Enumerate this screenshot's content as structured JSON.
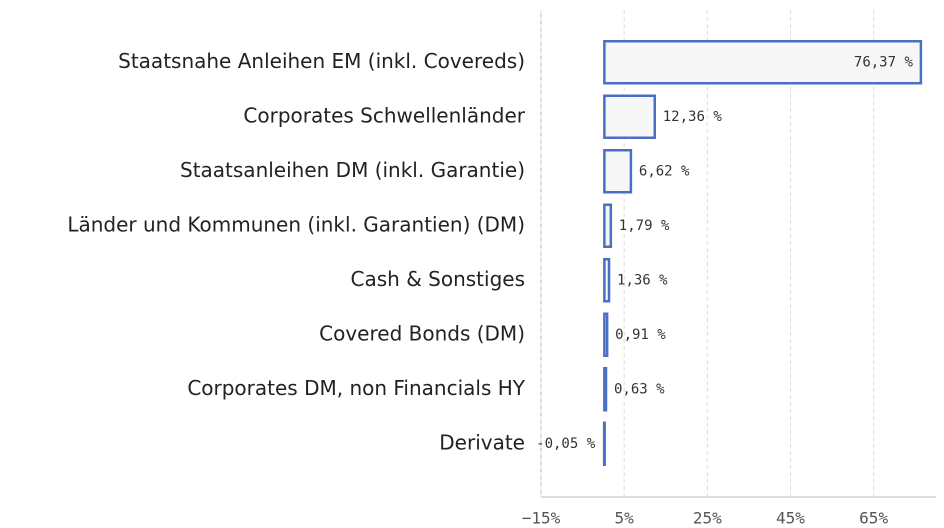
{
  "chart_data": {
    "type": "barh",
    "categories": [
      "Staatsnahe Anleihen EM (inkl. Covereds)",
      "Corporates Schwellenländer",
      "Staatsanleihen DM (inkl. Garantie)",
      "Länder und Kommunen (inkl. Garantien) (DM)",
      "Cash & Sonstiges",
      "Covered Bonds (DM)",
      "Corporates DM, non Financials HY",
      "Derivate"
    ],
    "values": [
      76.37,
      12.36,
      6.62,
      1.79,
      1.36,
      0.91,
      0.63,
      -0.05
    ],
    "value_labels": [
      "76,37 %",
      "12,36 %",
      "6,62 %",
      "1,79 %",
      "1,36 %",
      "0,91 %",
      "0,63 %",
      "-0,05 %"
    ],
    "color": "#4a6fc4",
    "xlim": [
      -15,
      80
    ],
    "xticks": [
      {
        "value": -15,
        "label": "−15%"
      },
      {
        "value": 5,
        "label": "5%"
      },
      {
        "value": 25,
        "label": "25%"
      },
      {
        "value": 45,
        "label": "45%"
      },
      {
        "value": 65,
        "label": "65%"
      }
    ],
    "grid": true
  }
}
